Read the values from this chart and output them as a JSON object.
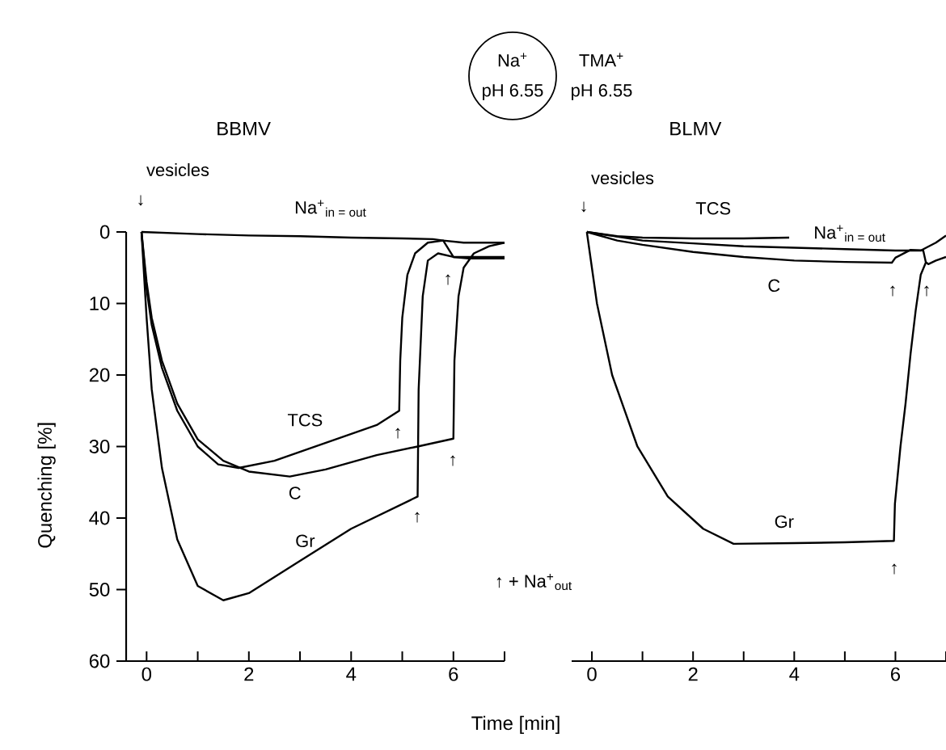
{
  "chart_data": [
    {
      "type": "line",
      "title": "BBMV",
      "xlabel": "Time  [min]",
      "ylabel": "Quenching [%]",
      "xlim": [
        -0.4,
        7
      ],
      "ylim": [
        60,
        0
      ],
      "xticks": [
        0,
        {
          "value": 1,
          "label": null
        },
        2,
        {
          "value": 3,
          "label": null
        },
        4,
        {
          "value": 5,
          "label": null
        },
        6,
        {
          "value": 7,
          "label": null
        }
      ],
      "yticks": [
        0,
        10,
        20,
        30,
        40,
        50,
        60
      ],
      "series": [
        {
          "name": "Na$^{+}$$_{in = out}$",
          "color": "#000000",
          "x": [
            -0.1,
            1,
            2,
            3,
            4,
            5,
            5.6,
            5.8,
            6.0,
            6.3,
            6.6,
            7
          ],
          "values": [
            0,
            0.3,
            0.5,
            0.6,
            0.8,
            0.9,
            1.0,
            1.2,
            3.5,
            3.7,
            3.7,
            3.7
          ]
        },
        {
          "name": "TCS",
          "color": "#000000",
          "x": [
            -0.1,
            0.0,
            0.1,
            0.3,
            0.6,
            1.0,
            1.4,
            1.8,
            2.5,
            3.5,
            4.5,
            4.94,
            4.96,
            5.0,
            5.1,
            5.25,
            5.5,
            5.8,
            6.2,
            7
          ],
          "values": [
            0,
            8,
            13,
            19,
            25,
            30,
            32.5,
            33,
            32,
            29.5,
            27,
            25,
            18,
            12,
            6,
            3,
            1.5,
            1.2,
            1.5,
            1.5
          ]
        },
        {
          "name": "C",
          "color": "#000000",
          "x": [
            -0.1,
            0.0,
            0.1,
            0.3,
            0.6,
            1.0,
            1.5,
            2.0,
            2.8,
            3.5,
            4.5,
            5.3,
            6.0,
            6.02,
            6.1,
            6.2,
            6.4,
            6.7,
            7
          ],
          "values": [
            0,
            7,
            12,
            18,
            24,
            29,
            32,
            33.5,
            34.2,
            33.2,
            31.2,
            30,
            28.9,
            18,
            9,
            5,
            3,
            2,
            1.5
          ]
        },
        {
          "name": "Gr",
          "color": "#000000",
          "x": [
            -0.1,
            0.0,
            0.1,
            0.3,
            0.6,
            1.0,
            1.5,
            2.0,
            3.0,
            4.0,
            5.3,
            5.32,
            5.4,
            5.5,
            5.7,
            6.0,
            6.5,
            7
          ],
          "values": [
            0,
            12,
            22,
            33,
            43,
            49.5,
            51.5,
            50.5,
            46,
            41.5,
            37,
            22,
            9,
            4,
            3,
            3.5,
            3.5,
            3.5
          ]
        }
      ],
      "annotations": [
        "Na$^{+}$",
        "pH 6.55",
        "TMA$^{+}$",
        "pH 6.55",
        "↑ + Na$^{+}$$_{out}$",
        "vesicles",
        "↓",
        "↑",
        "↑",
        "↑",
        "↑"
      ]
    },
    {
      "type": "line",
      "title": "BLMV",
      "xlim": [
        -0.4,
        7
      ],
      "ylim": [
        60,
        0
      ],
      "tick_labels": "x",
      "xticks": [
        0,
        {
          "value": 1,
          "label": null
        },
        2,
        {
          "value": 3,
          "label": null
        },
        4,
        {
          "value": 5,
          "label": null
        },
        6,
        {
          "value": 7,
          "label": null
        }
      ],
      "series": [
        {
          "name": "TCS",
          "color": "#000000",
          "x": [
            -0.1,
            0.5,
            1,
            2,
            3,
            3.9
          ],
          "values": [
            0,
            0.6,
            0.8,
            0.9,
            0.9,
            0.8
          ]
        },
        {
          "name": "Na$^{+}$$_{in = out}$",
          "color": "#000000",
          "x": [
            -0.1,
            1,
            2,
            3,
            4,
            5,
            6,
            6.5,
            6.8,
            7
          ],
          "values": [
            0,
            1.2,
            1.6,
            2,
            2.2,
            2.4,
            2.6,
            2.6,
            1.5,
            0.5
          ]
        },
        {
          "name": "C",
          "color": "#000000",
          "x": [
            -0.1,
            0.5,
            1,
            2,
            3,
            4,
            5,
            5.93,
            6.0,
            6.3,
            6.55,
            6.6,
            6.65,
            6.8,
            7
          ],
          "values": [
            0,
            1.2,
            1.8,
            2.8,
            3.5,
            4,
            4.2,
            4.3,
            3.6,
            2.5,
            2.6,
            4.2,
            4.5,
            4,
            3.5
          ]
        },
        {
          "name": "Gr",
          "color": "#000000",
          "x": [
            -0.1,
            0.0,
            0.1,
            0.4,
            0.9,
            1.5,
            2.2,
            2.8,
            4.0,
            5.0,
            5.97,
            5.99,
            6.1,
            6.2,
            6.3,
            6.4,
            6.5,
            6.6
          ],
          "values": [
            0,
            5,
            10,
            20,
            30,
            37,
            41.5,
            43.6,
            43.5,
            43.4,
            43.2,
            38,
            30,
            24,
            17,
            11,
            6,
            4.3
          ]
        }
      ],
      "annotations": [
        "vesicles",
        "↓",
        "↑",
        "↑",
        "↑"
      ]
    }
  ]
}
